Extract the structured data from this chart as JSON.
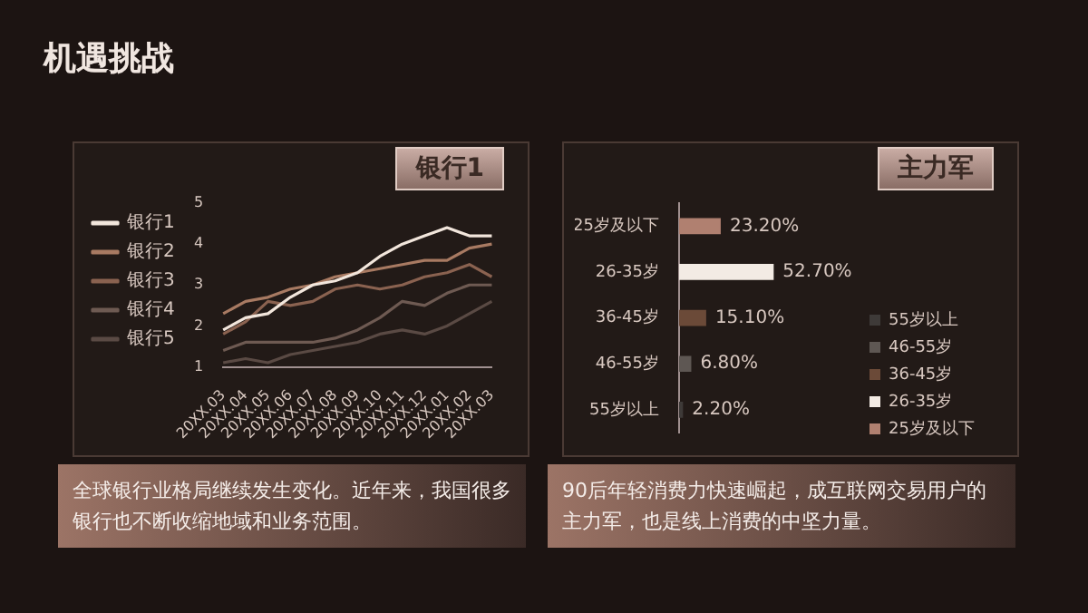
{
  "chart_data": [
    {
      "type": "line",
      "title": "机遇挑战",
      "annotations": [
        "银行1",
        "全球银行业格局继续发生变化。近年来，我国很多银行也不断收缩地域和业务范围。"
      ],
      "categories": [
        "20XX.03",
        "20XX.04",
        "20XX.05",
        "20XX.06",
        "20XX.07",
        "20XX.08",
        "20XX.09",
        "20XX.10",
        "20XX.11",
        "20XX.12",
        "20XX.01",
        "20XX.02",
        "20XX.03"
      ],
      "series": [
        {
          "name": "银行1",
          "color": "#f2e6dc",
          "values": [
            1.9,
            2.2,
            2.3,
            2.7,
            3.0,
            3.1,
            3.3,
            3.7,
            4.0,
            4.2,
            4.4,
            4.2,
            4.2
          ]
        },
        {
          "name": "银行2",
          "color": "#a87a62",
          "values": [
            2.3,
            2.6,
            2.7,
            2.9,
            3.0,
            3.2,
            3.3,
            3.4,
            3.5,
            3.6,
            3.6,
            3.9,
            4.0
          ]
        },
        {
          "name": "银行3",
          "color": "#8a6250",
          "values": [
            1.8,
            2.1,
            2.6,
            2.5,
            2.6,
            2.9,
            3.0,
            2.9,
            3.0,
            3.2,
            3.3,
            3.5,
            3.2
          ]
        },
        {
          "name": "银行4",
          "color": "#6e5a52",
          "values": [
            1.4,
            1.6,
            1.6,
            1.6,
            1.6,
            1.7,
            1.9,
            2.2,
            2.6,
            2.5,
            2.8,
            3.0,
            3.0
          ]
        },
        {
          "name": "银行5",
          "color": "#5a4a44",
          "values": [
            1.1,
            1.2,
            1.1,
            1.3,
            1.4,
            1.5,
            1.6,
            1.8,
            1.9,
            1.8,
            2.0,
            2.3,
            2.6
          ]
        }
      ],
      "ylim": [
        1,
        5
      ],
      "yticks": [
        1,
        2,
        3,
        4,
        5
      ],
      "grid": false,
      "legend": "top left",
      "marker": "none"
    },
    {
      "type": "bar",
      "orientation": "horizontal",
      "stacked": true,
      "annotations": [
        "主力军",
        "90后年轻消费力快速崛起，成互联网交易用户的主力军，也是线上消费的中坚力量。"
      ],
      "categories": [
        "25岁及以下",
        "26-35岁",
        "36-45岁",
        "46-55岁",
        "55岁以上"
      ],
      "series": [
        {
          "name": "25岁及以下",
          "color": "#b08070",
          "values": [
            23.2,
            null,
            null,
            null,
            null
          ],
          "value_labels": [
            "23.20%",
            null,
            null,
            null,
            null
          ]
        },
        {
          "name": "26-35岁",
          "color": "#f3ebe4",
          "values": [
            null,
            52.7,
            null,
            null,
            null
          ],
          "value_labels": [
            null,
            "52.70%",
            null,
            null,
            null
          ]
        },
        {
          "name": "36-45岁",
          "color": "#6b4a38",
          "values": [
            null,
            null,
            15.1,
            null,
            null
          ],
          "value_labels": [
            null,
            null,
            "15.10%",
            null,
            null
          ]
        },
        {
          "name": "46-55岁",
          "color": "#5e5753",
          "values": [
            null,
            null,
            null,
            6.8,
            null
          ],
          "value_labels": [
            null,
            null,
            null,
            "6.80%",
            null
          ]
        },
        {
          "name": "55岁以上",
          "color": "#3e3a38",
          "values": [
            null,
            null,
            null,
            null,
            2.2
          ],
          "value_labels": [
            null,
            null,
            null,
            null,
            "2.20%"
          ]
        }
      ],
      "legend": "bottom right",
      "grid": false
    }
  ]
}
